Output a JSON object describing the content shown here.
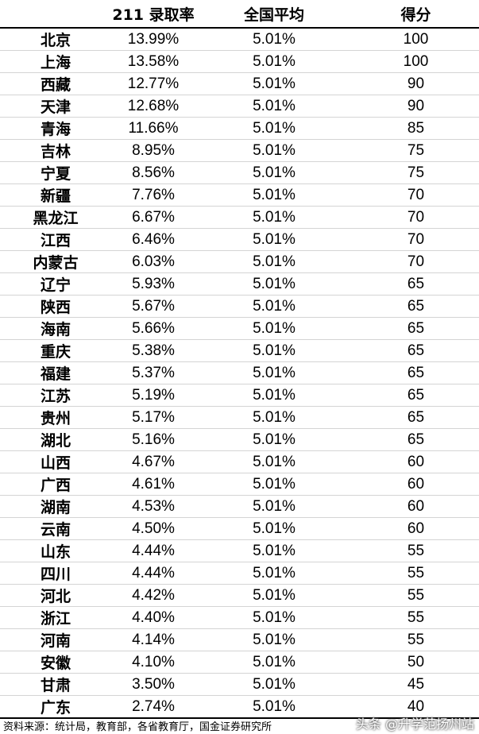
{
  "table": {
    "headers": [
      "",
      "211 录取率",
      "全国平均",
      "得分"
    ],
    "rows": [
      [
        "北京",
        "13.99%",
        "5.01%",
        "100"
      ],
      [
        "上海",
        "13.58%",
        "5.01%",
        "100"
      ],
      [
        "西藏",
        "12.77%",
        "5.01%",
        "90"
      ],
      [
        "天津",
        "12.68%",
        "5.01%",
        "90"
      ],
      [
        "青海",
        "11.66%",
        "5.01%",
        "85"
      ],
      [
        "吉林",
        "8.95%",
        "5.01%",
        "75"
      ],
      [
        "宁夏",
        "8.56%",
        "5.01%",
        "75"
      ],
      [
        "新疆",
        "7.76%",
        "5.01%",
        "70"
      ],
      [
        "黑龙江",
        "6.67%",
        "5.01%",
        "70"
      ],
      [
        "江西",
        "6.46%",
        "5.01%",
        "70"
      ],
      [
        "内蒙古",
        "6.03%",
        "5.01%",
        "70"
      ],
      [
        "辽宁",
        "5.93%",
        "5.01%",
        "65"
      ],
      [
        "陕西",
        "5.67%",
        "5.01%",
        "65"
      ],
      [
        "海南",
        "5.66%",
        "5.01%",
        "65"
      ],
      [
        "重庆",
        "5.38%",
        "5.01%",
        "65"
      ],
      [
        "福建",
        "5.37%",
        "5.01%",
        "65"
      ],
      [
        "江苏",
        "5.19%",
        "5.01%",
        "65"
      ],
      [
        "贵州",
        "5.17%",
        "5.01%",
        "65"
      ],
      [
        "湖北",
        "5.16%",
        "5.01%",
        "65"
      ],
      [
        "山西",
        "4.67%",
        "5.01%",
        "60"
      ],
      [
        "广西",
        "4.61%",
        "5.01%",
        "60"
      ],
      [
        "湖南",
        "4.53%",
        "5.01%",
        "60"
      ],
      [
        "云南",
        "4.50%",
        "5.01%",
        "60"
      ],
      [
        "山东",
        "4.44%",
        "5.01%",
        "55"
      ],
      [
        "四川",
        "4.44%",
        "5.01%",
        "55"
      ],
      [
        "河北",
        "4.42%",
        "5.01%",
        "55"
      ],
      [
        "浙江",
        "4.40%",
        "5.01%",
        "55"
      ],
      [
        "河南",
        "4.14%",
        "5.01%",
        "55"
      ],
      [
        "安徽",
        "4.10%",
        "5.01%",
        "50"
      ],
      [
        "甘肃",
        "3.50%",
        "5.01%",
        "45"
      ],
      [
        "广东",
        "2.74%",
        "5.01%",
        "40"
      ]
    ]
  },
  "footer": {
    "source": "资料来源：统计局，教育部，各省教育厅，国金证券研究所",
    "watermark": "头条 @升学范扬州站"
  }
}
